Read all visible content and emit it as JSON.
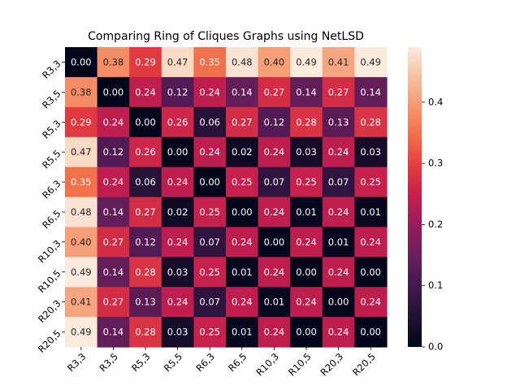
{
  "chart_data": {
    "type": "heatmap",
    "title": "Comparing Ring of Cliques Graphs using NetLSD",
    "xlabel": "",
    "ylabel": "",
    "row_labels": [
      "R3,3",
      "R3,5",
      "R5,3",
      "R5,5",
      "R6,3",
      "R6,5",
      "R10,3",
      "R10,5",
      "R20,3",
      "R20,5"
    ],
    "col_labels": [
      "R3,3",
      "R3,5",
      "R5,3",
      "R5,5",
      "R6,3",
      "R6,5",
      "R10,3",
      "R10,5",
      "R20,3",
      "R20,5"
    ],
    "values": [
      [
        0.0,
        0.38,
        0.29,
        0.47,
        0.35,
        0.48,
        0.4,
        0.49,
        0.41,
        0.49
      ],
      [
        0.38,
        0.0,
        0.24,
        0.12,
        0.24,
        0.14,
        0.27,
        0.14,
        0.27,
        0.14
      ],
      [
        0.29,
        0.24,
        0.0,
        0.26,
        0.06,
        0.27,
        0.12,
        0.28,
        0.13,
        0.28
      ],
      [
        0.47,
        0.12,
        0.26,
        0.0,
        0.24,
        0.02,
        0.24,
        0.03,
        0.24,
        0.03
      ],
      [
        0.35,
        0.24,
        0.06,
        0.24,
        0.0,
        0.25,
        0.07,
        0.25,
        0.07,
        0.25
      ],
      [
        0.48,
        0.14,
        0.27,
        0.02,
        0.25,
        0.0,
        0.24,
        0.01,
        0.24,
        0.01
      ],
      [
        0.4,
        0.27,
        0.12,
        0.24,
        0.07,
        0.24,
        0.0,
        0.24,
        0.01,
        0.24
      ],
      [
        0.49,
        0.14,
        0.28,
        0.03,
        0.25,
        0.01,
        0.24,
        0.0,
        0.24,
        0.0
      ],
      [
        0.41,
        0.27,
        0.13,
        0.24,
        0.07,
        0.24,
        0.01,
        0.24,
        0.0,
        0.24
      ],
      [
        0.49,
        0.14,
        0.28,
        0.03,
        0.25,
        0.01,
        0.24,
        0.0,
        0.24,
        0.0
      ]
    ],
    "annotations_format": "0.00",
    "colormap": "rocket",
    "colorbar": {
      "range": [
        0.0,
        0.49
      ],
      "ticks": [
        0.0,
        0.1,
        0.2,
        0.3,
        0.4
      ],
      "tick_labels": [
        "0.0",
        "0.1",
        "0.2",
        "0.3",
        "0.4"
      ]
    }
  }
}
